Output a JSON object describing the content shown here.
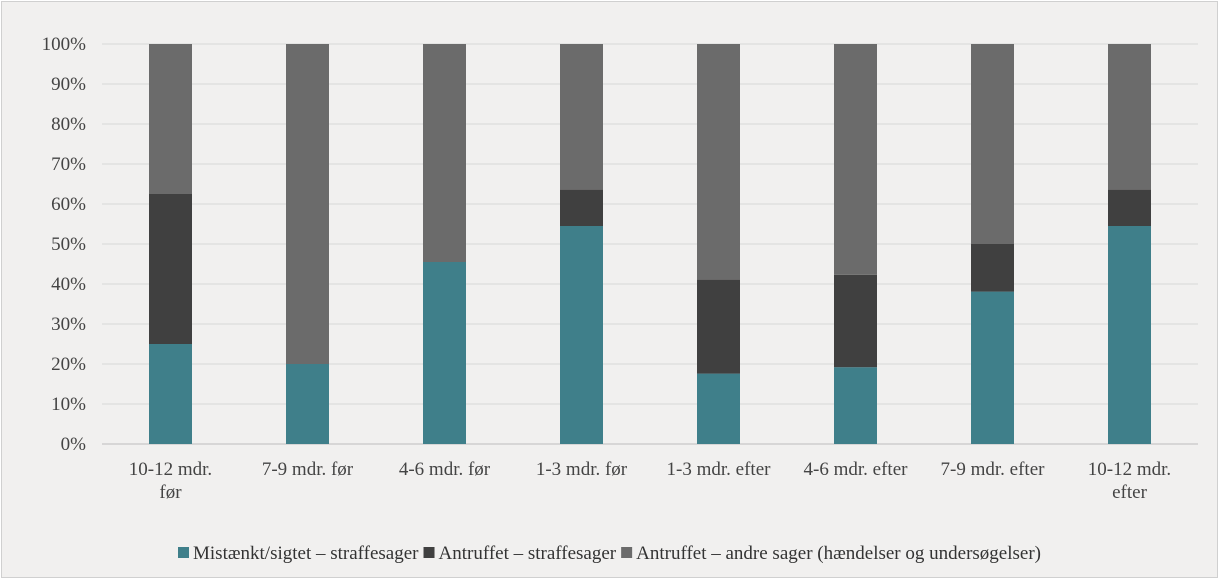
{
  "chart_data": {
    "type": "bar",
    "stacked": true,
    "normalized": true,
    "title": "",
    "xlabel": "",
    "ylabel": "",
    "ylim": [
      0,
      100
    ],
    "yticks": [
      "0%",
      "10%",
      "20%",
      "30%",
      "40%",
      "50%",
      "60%",
      "70%",
      "80%",
      "90%",
      "100%"
    ],
    "grid": true,
    "legend_position": "bottom",
    "categories": [
      [
        "10-12 mdr.",
        "før"
      ],
      [
        "7-9 mdr. før"
      ],
      [
        "4-6 mdr. før"
      ],
      [
        "1-3 mdr. før"
      ],
      [
        "1-3 mdr. efter"
      ],
      [
        "4-6 mdr. efter"
      ],
      [
        "7-9 mdr. efter"
      ],
      [
        "10-12 mdr.",
        "efter"
      ]
    ],
    "series": [
      {
        "name": "Mistænkt/sigtet – straffesager",
        "color": "#3f7f8a",
        "values": [
          25,
          20,
          45.5,
          54.5,
          17.6,
          19.2,
          38.1,
          54.5
        ]
      },
      {
        "name": "Antruffet – straffesager",
        "color": "#404040",
        "values": [
          37.5,
          0,
          0,
          9.1,
          23.5,
          23.1,
          11.9,
          9.1
        ]
      },
      {
        "name": "Antruffet – andre sager (hændelser og undersøgelser)",
        "color": "#6b6b6b",
        "values": [
          37.5,
          80,
          54.5,
          36.4,
          58.9,
          57.7,
          50,
          36.4
        ]
      }
    ]
  }
}
